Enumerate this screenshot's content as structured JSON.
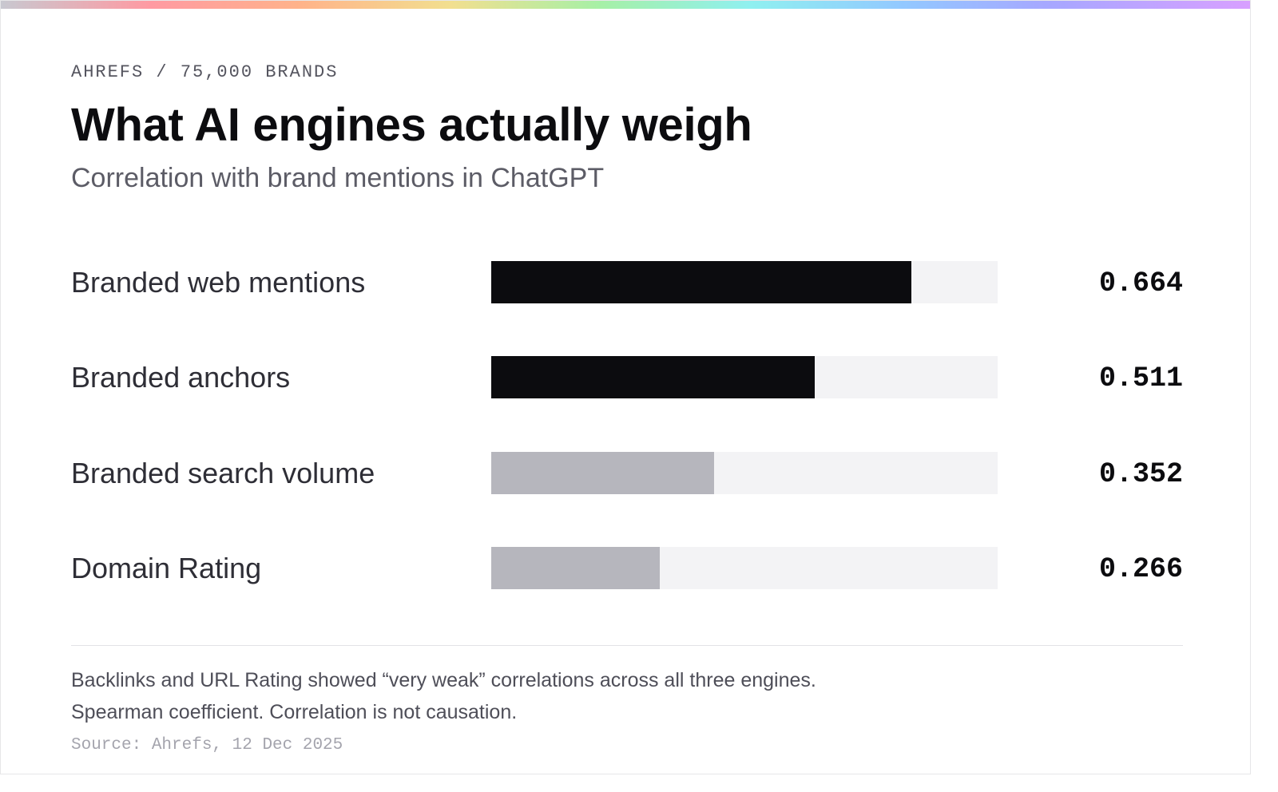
{
  "header": {
    "eyebrow": "AHREFS / 75,000 BRANDS",
    "title": "What AI engines actually weigh",
    "subtitle": "Correlation with brand mentions in ChatGPT"
  },
  "colors": {
    "strong": "#0c0c0f",
    "weak": "#b6b6bd",
    "track": "#f3f3f5"
  },
  "chart_data": {
    "type": "bar",
    "orientation": "horizontal",
    "title": "What AI engines actually weigh",
    "subtitle": "Correlation with brand mentions in ChatGPT",
    "categories": [
      "Branded web mentions",
      "Branded anchors",
      "Branded search volume",
      "Domain Rating"
    ],
    "values": [
      0.664,
      0.511,
      0.352,
      0.266
    ],
    "value_labels": [
      "0.664",
      "0.511",
      "0.352",
      "0.266"
    ],
    "strength": [
      "strong",
      "strong",
      "weak",
      "weak"
    ],
    "xlim": [
      0,
      0.8
    ],
    "grid": false,
    "legend": "none"
  },
  "footer": {
    "note_1": "Backlinks and URL Rating showed “very weak” correlations across all three engines.",
    "note_2": "Spearman coefficient. Correlation is not causation.",
    "source": "Source: Ahrefs, 12 Dec 2025"
  }
}
